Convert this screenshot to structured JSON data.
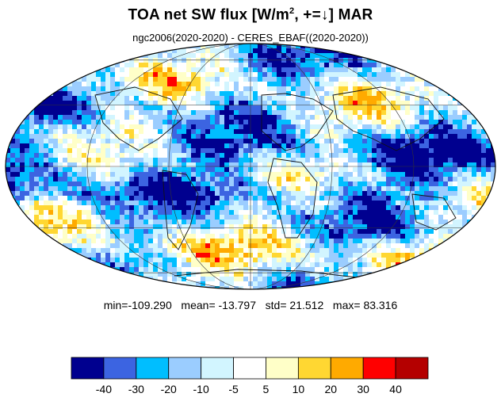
{
  "title": {
    "prefix": "TOA net SW flux [W/m",
    "sup": "2",
    "suffix": ", +=↓]  MAR"
  },
  "subtitle": "ngc2006(2020-2020) - CERES_EBAF((2020-2020))",
  "stats": {
    "min": "-109.290",
    "mean": "-13.797",
    "std": "21.512",
    "max": "83.316"
  },
  "colorbar": {
    "colors": [
      "#00008f",
      "#3c64e1",
      "#00beff",
      "#9bcdff",
      "#d2f5ff",
      "#ffffff",
      "#ffffc8",
      "#ffd732",
      "#ffaa00",
      "#ff0000",
      "#b40000"
    ],
    "labels": [
      "-40",
      "-30",
      "-20",
      "-10",
      "-5",
      "5",
      "10",
      "20",
      "30",
      "40"
    ]
  }
}
